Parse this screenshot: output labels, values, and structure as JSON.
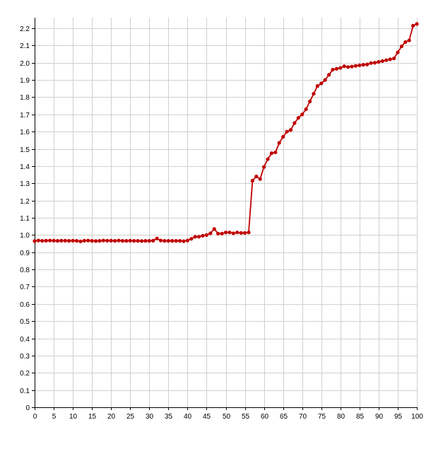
{
  "chart_data": {
    "type": "line",
    "title": "",
    "xlabel": "",
    "ylabel": "",
    "xlim": [
      0,
      100
    ],
    "ylim": [
      0,
      2.2
    ],
    "grid": true,
    "legend": "none",
    "x_ticks": [
      "0",
      "5",
      "10",
      "15",
      "20",
      "25",
      "30",
      "35",
      "40",
      "45",
      "50",
      "55",
      "60",
      "65",
      "70",
      "75",
      "80",
      "85",
      "90",
      "95",
      "100"
    ],
    "y_ticks": [
      "0",
      "0.1",
      "0.2",
      "0.3",
      "0.4",
      "0.5",
      "0.6",
      "0.7",
      "0.8",
      "0.9",
      "1.0",
      "1.1",
      "1.2",
      "1.3",
      "1.4",
      "1.5",
      "1.6",
      "1.7",
      "1.8",
      "1.9",
      "2.0",
      "2.1",
      "2.2"
    ],
    "series": [
      {
        "color": "#c00000",
        "x": [
          0,
          1,
          2,
          3,
          4,
          5,
          6,
          7,
          8,
          9,
          10,
          11,
          12,
          13,
          14,
          15,
          16,
          17,
          18,
          19,
          20,
          21,
          22,
          23,
          24,
          25,
          26,
          27,
          28,
          29,
          30,
          31,
          32,
          33,
          34,
          35,
          36,
          37,
          38,
          39,
          40,
          41,
          42,
          43,
          44,
          45,
          46,
          47,
          48,
          49,
          50,
          51,
          52,
          53,
          54,
          55,
          56,
          57,
          58,
          59,
          60,
          61,
          62,
          63,
          64,
          65,
          66,
          67,
          68,
          69,
          70,
          71,
          72,
          73,
          74,
          75,
          76,
          77,
          78,
          79,
          80,
          81,
          82,
          83,
          84,
          85,
          86,
          87,
          88,
          89,
          90,
          91,
          92,
          93,
          94,
          95,
          96,
          97,
          98,
          99,
          100
        ],
        "y": [
          0.965,
          0.968,
          0.966,
          0.967,
          0.968,
          0.967,
          0.966,
          0.967,
          0.967,
          0.966,
          0.967,
          0.966,
          0.963,
          0.967,
          0.968,
          0.966,
          0.965,
          0.966,
          0.968,
          0.967,
          0.967,
          0.966,
          0.968,
          0.966,
          0.966,
          0.967,
          0.966,
          0.966,
          0.965,
          0.966,
          0.966,
          0.967,
          0.98,
          0.968,
          0.966,
          0.966,
          0.966,
          0.966,
          0.966,
          0.964,
          0.968,
          0.978,
          0.99,
          0.99,
          0.996,
          1.0,
          1.01,
          1.035,
          1.008,
          1.008,
          1.015,
          1.015,
          1.01,
          1.015,
          1.012,
          1.012,
          1.015,
          1.315,
          1.34,
          1.325,
          1.395,
          1.44,
          1.475,
          1.48,
          1.535,
          1.57,
          1.6,
          1.61,
          1.65,
          1.68,
          1.7,
          1.73,
          1.775,
          1.82,
          1.865,
          1.88,
          1.9,
          1.93,
          1.96,
          1.965,
          1.97,
          1.98,
          1.975,
          1.978,
          1.982,
          1.985,
          1.988,
          1.99,
          1.998,
          2.0,
          2.005,
          2.01,
          2.015,
          2.02,
          2.025,
          2.06,
          2.095,
          2.12,
          2.13,
          2.215,
          2.225
        ]
      }
    ]
  }
}
